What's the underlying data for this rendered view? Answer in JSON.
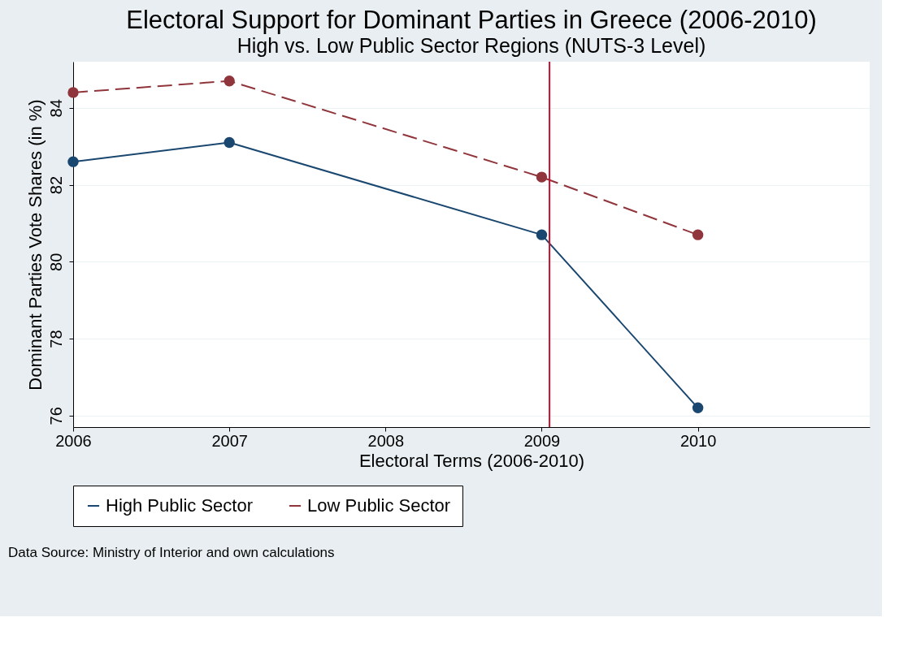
{
  "chart_data": {
    "type": "line",
    "title": "Electoral Support for Dominant Parties in Greece (2006-2010)",
    "subtitle": "High vs. Low Public Sector Regions (NUTS-3 Level)",
    "xlabel": "Electoral Terms (2006-2010)",
    "ylabel": "Dominant Parties Vote Shares (in %)",
    "x": [
      2006,
      2007,
      2009,
      2010
    ],
    "series": [
      {
        "name": "High Public Sector",
        "color": "#1a476f",
        "line_style": "solid",
        "values": [
          82.6,
          83.1,
          80.7,
          76.2
        ]
      },
      {
        "name": "Low Public Sector",
        "color": "#90353b",
        "line_style": "dashed",
        "values": [
          84.4,
          84.7,
          82.2,
          80.7
        ]
      }
    ],
    "xlim": [
      2006,
      2011.1
    ],
    "xticks": [
      2006,
      2007,
      2008,
      2009,
      2010
    ],
    "ylim": [
      75.7,
      85.2
    ],
    "yticks": [
      76,
      78,
      80,
      82,
      84
    ],
    "ref_lines": [
      {
        "axis": "x",
        "value": 2009.05,
        "color": "#c8102e"
      }
    ],
    "grid": "y",
    "legend": "bottom",
    "marker": "circle",
    "annotations": [
      "Data Source: Ministry of Interior and own calculations"
    ]
  }
}
